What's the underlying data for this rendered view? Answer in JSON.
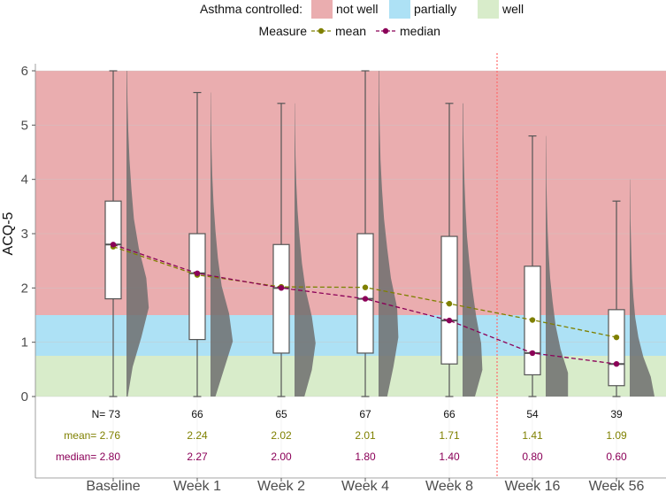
{
  "chart_data": {
    "type": "box",
    "ylabel": "ACQ-5",
    "xlabel": "",
    "ylim": [
      0,
      6
    ],
    "yticks": [
      0,
      1,
      2,
      3,
      4,
      5,
      6
    ],
    "categories": [
      "Baseline",
      "Week 1",
      "Week 2",
      "Week 4",
      "Week 8",
      "Week 16",
      "Week 56"
    ],
    "boxes": [
      {
        "min": 0,
        "q1": 1.8,
        "median": 2.8,
        "q3": 3.6,
        "max": 6.0
      },
      {
        "min": 0,
        "q1": 1.05,
        "median": 2.27,
        "q3": 3.0,
        "max": 5.6
      },
      {
        "min": 0,
        "q1": 0.8,
        "median": 2.0,
        "q3": 2.8,
        "max": 5.4
      },
      {
        "min": 0,
        "q1": 0.8,
        "median": 1.8,
        "q3": 3.0,
        "max": 6.0
      },
      {
        "min": 0,
        "q1": 0.6,
        "median": 1.4,
        "q3": 2.95,
        "max": 5.4
      },
      {
        "min": 0,
        "q1": 0.4,
        "median": 0.8,
        "q3": 2.4,
        "max": 4.8
      },
      {
        "min": 0,
        "q1": 0.2,
        "median": 0.6,
        "q3": 1.6,
        "max": 3.6
      }
    ],
    "density_max": [
      6.0,
      5.6,
      5.4,
      6.0,
      5.4,
      4.8,
      4.0
    ],
    "series": [
      {
        "name": "mean",
        "color": "#7f8000",
        "values": [
          2.76,
          2.24,
          2.02,
          2.01,
          1.71,
          1.41,
          1.09
        ]
      },
      {
        "name": "median",
        "color": "#8b0058",
        "values": [
          2.8,
          2.27,
          2.0,
          1.8,
          1.4,
          0.8,
          0.6
        ]
      }
    ],
    "bands": [
      {
        "name": "not well",
        "from": 1.5,
        "to": 6.0,
        "color": "#eaadaf"
      },
      {
        "name": "partially",
        "from": 0.75,
        "to": 1.5,
        "color": "#ade1f5"
      },
      {
        "name": "well",
        "from": 0,
        "to": 0.75,
        "color": "#d8ecca"
      }
    ],
    "divider_after_index": 4,
    "n_values": [
      "73",
      "66",
      "65",
      "67",
      "66",
      "54",
      "39"
    ],
    "mean_labels": [
      "2.76",
      "2.24",
      "2.02",
      "2.01",
      "1.71",
      "1.41",
      "1.09"
    ],
    "median_labels": [
      "2.80",
      "2.27",
      "2.00",
      "1.80",
      "1.40",
      "0.80",
      "0.60"
    ],
    "row_prefixes": {
      "n": "N=",
      "mean": "mean=",
      "median": "median="
    },
    "legend": {
      "asthma_title": "Asthma controlled:",
      "asthma_items": [
        "not well",
        "partially",
        "well"
      ],
      "measure_title": "Measure",
      "measure_items": [
        "mean",
        "median"
      ],
      "placement": "top"
    }
  }
}
